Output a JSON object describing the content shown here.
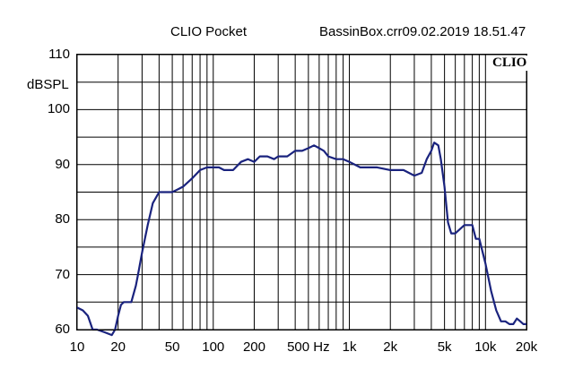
{
  "header": {
    "app_title": "CLIO Pocket",
    "file_info": "BassinBox.crr09.02.2019 18.51.47"
  },
  "brand": "CLIO",
  "chart_data": {
    "type": "line",
    "title": "",
    "xlabel": "",
    "ylabel": "dBSPL",
    "x_scale": "log",
    "xlim": [
      10,
      20000
    ],
    "ylim": [
      60,
      110
    ],
    "grid": true,
    "y_ticks": [
      "110",
      "100",
      "90",
      "80",
      "70",
      "60"
    ],
    "y_tick_values": [
      110,
      100,
      90,
      80,
      70,
      60
    ],
    "x_ticks": [
      "10",
      "20",
      "50",
      "100",
      "200",
      "500 Hz",
      "1k",
      "2k",
      "5k",
      "10k",
      "20k"
    ],
    "x_tick_values": [
      10,
      20,
      50,
      100,
      200,
      500,
      1000,
      2000,
      5000,
      10000,
      20000
    ],
    "line_color": "#1a237e",
    "series": [
      {
        "x": [
          10,
          11,
          12,
          13,
          14,
          16,
          18,
          19,
          20,
          21,
          22,
          23,
          25,
          27,
          28,
          30,
          33,
          36,
          40,
          45,
          50,
          55,
          60,
          70,
          80,
          90,
          100,
          110,
          120,
          140,
          160,
          180,
          200,
          220,
          250,
          280,
          300,
          350,
          400,
          450,
          500,
          550,
          600,
          650,
          700,
          800,
          900,
          1000,
          1200,
          1400,
          1600,
          2000,
          2500,
          3000,
          3400,
          3700,
          4000,
          4200,
          4500,
          4700,
          5000,
          5300,
          5600,
          6000,
          7000,
          8000,
          8500,
          9000,
          10000,
          11000,
          12000,
          13000,
          14000,
          15000,
          16000,
          17000,
          18000,
          19000,
          20000
        ],
        "y": [
          64,
          63.5,
          62.5,
          60,
          60,
          59.5,
          59,
          60,
          62.5,
          64.5,
          65,
          65,
          65,
          68,
          70,
          74,
          79,
          83,
          85,
          85,
          85,
          85.5,
          86,
          87.5,
          89,
          89.5,
          89.5,
          89.5,
          89,
          89,
          90.5,
          91,
          90.5,
          91.5,
          91.5,
          91,
          91.5,
          91.5,
          92.5,
          92.5,
          93,
          93.5,
          93,
          92.5,
          91.5,
          91,
          91,
          90.5,
          89.5,
          89.5,
          89.5,
          89,
          89,
          88,
          88.5,
          91,
          92.5,
          94,
          93.5,
          91,
          86,
          79.5,
          77.5,
          77.5,
          79,
          79,
          76.5,
          76.5,
          72,
          67,
          63.5,
          61.5,
          61.5,
          61,
          61,
          62,
          61.5,
          61,
          61
        ]
      }
    ]
  }
}
